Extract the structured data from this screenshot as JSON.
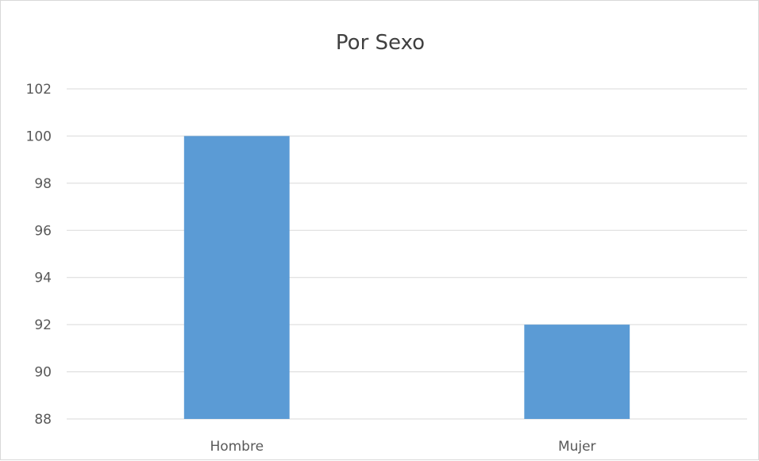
{
  "chart_data": {
    "type": "bar",
    "title": "Por Sexo",
    "categories": [
      "Hombre",
      "Mujer"
    ],
    "values": [
      100,
      92
    ],
    "ylim": [
      88,
      102
    ],
    "yticks": [
      88,
      90,
      92,
      94,
      96,
      98,
      100,
      102
    ],
    "grid": true,
    "legend": "none",
    "bar_color": "#5b9bd5",
    "grid_color": "#d9d9d9",
    "text_color": "#595959"
  }
}
